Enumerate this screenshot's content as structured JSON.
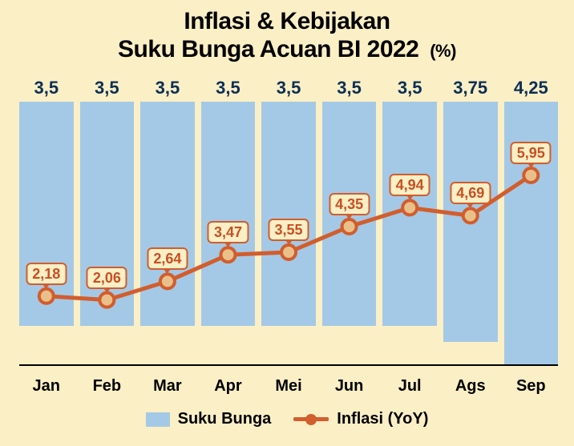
{
  "title": {
    "line1": "Inflasi & Kebijakan",
    "line2": "Suku Bunga Acuan BI 2022",
    "unit": "(%)",
    "fontsize": 30,
    "color": "#000000"
  },
  "chart": {
    "type": "combo-bar-line",
    "background_color": "#fbefc5",
    "categories": [
      "Jan",
      "Feb",
      "Mar",
      "Apr",
      "Mei",
      "Jun",
      "Jul",
      "Ags",
      "Sep"
    ],
    "bar_series": {
      "name": "Suku Bunga",
      "values": [
        3.5,
        3.5,
        3.5,
        3.5,
        3.5,
        3.5,
        3.5,
        3.75,
        4.25
      ],
      "value_labels": [
        "3,5",
        "3,5",
        "3,5",
        "3,5",
        "3,5",
        "3,5",
        "3,5",
        "3,75",
        "4,25"
      ],
      "color": "#a4c9e6",
      "label_color": "#0b2f55",
      "label_fontsize": 22,
      "max_scale": 4.5
    },
    "line_series": {
      "name": "Inflasi (YoY)",
      "values": [
        2.18,
        2.06,
        2.64,
        3.47,
        3.55,
        4.35,
        4.94,
        4.69,
        5.95
      ],
      "value_labels": [
        "2,18",
        "2,06",
        "2,64",
        "3,47",
        "3,55",
        "4,35",
        "4,94",
        "4,69",
        "5,95"
      ],
      "color": "#d25d2d",
      "marker_fill": "#e9c089",
      "marker_stroke": "#d25d2d",
      "marker_radius": 9,
      "stroke_width": 5,
      "label_fontsize": 18,
      "label_color": "#c84f22",
      "min_scale": 0,
      "max_scale": 9
    },
    "x_label_fontsize": 20,
    "baseline_color": "#000000"
  },
  "legend": {
    "items": [
      {
        "label": "Suku Bunga",
        "type": "bar"
      },
      {
        "label": "Inflasi (YoY)",
        "type": "line"
      }
    ],
    "fontsize": 20
  }
}
